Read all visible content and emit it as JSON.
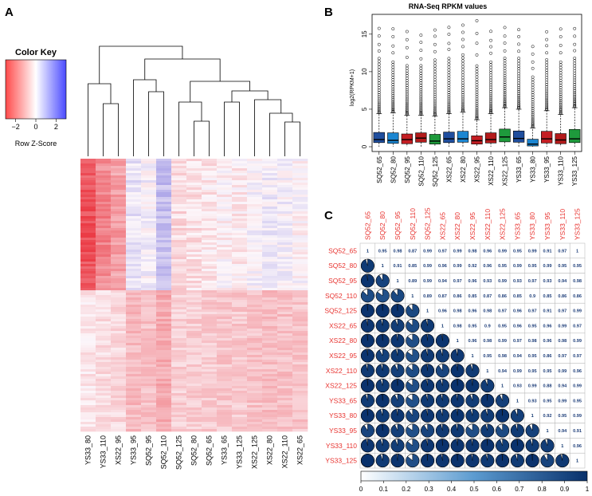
{
  "figure": {
    "panel_labels": [
      "A",
      "B",
      "C"
    ]
  },
  "chart_data": [
    {
      "panel": "A",
      "type": "heatmap",
      "title": "",
      "color_key": {
        "title": "Color Key",
        "xlabel": "Row Z-Score",
        "ticks": [
          "-2",
          "0",
          "2"
        ],
        "range": [
          -3,
          3
        ],
        "colors": [
          "#ff4040",
          "#ffffff",
          "#4040ff"
        ]
      },
      "columns": [
        "YS33_80",
        "YS33_110",
        "XS22_95",
        "YS33_95",
        "SQ52_95",
        "SQ52_110",
        "SQ52_125",
        "SQ52_80",
        "SQ52_65",
        "YS33_65",
        "YS33_125",
        "XS22_125",
        "XS22_80",
        "XS22_110",
        "XS22_65"
      ],
      "column_base_tint": [
        -0.6,
        -0.35,
        -0.25,
        0.45,
        0.3,
        0.85,
        -0.05,
        0.0,
        0.05,
        0.15,
        0.1,
        0.25,
        0.35,
        0.3,
        0.2
      ],
      "row_split_fraction": 0.48,
      "dendrogram": "hierarchical clustering of samples"
    },
    {
      "panel": "B",
      "type": "box",
      "title": "RNA-Seq RPKM values",
      "ylabel": "log2(RPKM+1)",
      "xlabel": "",
      "ylim": [
        0,
        17
      ],
      "yticks": [
        0,
        5,
        10,
        15
      ],
      "categories": [
        "SQ52_65",
        "SQ52_80",
        "SQ52_95",
        "SQ52_110",
        "SQ52_125",
        "XS22_65",
        "XS22_80",
        "XS22_95",
        "XS22_110",
        "XS22_125",
        "YS33_65",
        "YS33_80",
        "YS33_95",
        "YS33_110",
        "YS33_125"
      ],
      "colors": [
        "#1f4e9e",
        "#1c86d1",
        "#c41e23",
        "#b31b1b",
        "#1e9a3c",
        "#1f4e9e",
        "#1c86d1",
        "#c41e23",
        "#b31b1b",
        "#1e9a3c",
        "#1f4e9e",
        "#1c86d1",
        "#c41e23",
        "#b31b1b",
        "#1e9a3c"
      ],
      "q1": [
        0.55,
        0.45,
        0.4,
        0.6,
        0.35,
        0.55,
        0.6,
        0.35,
        0.5,
        0.65,
        0.6,
        0.1,
        0.5,
        0.4,
        0.55
      ],
      "median": [
        0.95,
        0.85,
        0.95,
        1.15,
        0.75,
        1.05,
        1.05,
        0.8,
        0.95,
        1.3,
        1.1,
        0.35,
        1.05,
        0.9,
        1.05
      ],
      "q3": [
        1.9,
        1.85,
        1.7,
        1.85,
        1.65,
        1.95,
        2.05,
        1.45,
        1.85,
        2.35,
        2.1,
        1.0,
        2.05,
        1.75,
        2.3
      ],
      "whisker_high": [
        4.4,
        4.5,
        4.2,
        4.2,
        4.1,
        4.4,
        4.6,
        3.6,
        4.4,
        5.2,
        5.0,
        2.5,
        4.8,
        4.3,
        5.2
      ],
      "outlier_max": [
        15.8,
        15.8,
        15.6,
        15.0,
        15.8,
        16.0,
        16.4,
        16.8,
        15.4,
        16.0,
        15.8,
        13.6,
        15.4,
        15.8,
        15.8
      ],
      "dense_outliers_to": [
        12.0,
        11.5,
        11.0,
        11.0,
        11.8,
        12.0,
        12.5,
        11.0,
        11.5,
        12.0,
        12.0,
        9.5,
        11.8,
        11.5,
        12.0
      ]
    },
    {
      "panel": "C",
      "type": "table",
      "title": "",
      "labels": [
        "SQ52_65",
        "SQ52_80",
        "SQ52_95",
        "SQ52_110",
        "SQ52_125",
        "XS22_65",
        "XS22_80",
        "XS22_95",
        "XS22_110",
        "XS22_125",
        "YS33_65",
        "YS33_80",
        "YS33_95",
        "YS33_110",
        "YS33_125"
      ],
      "matrix": [
        [
          "1",
          "0.95",
          "0.98",
          "0.87",
          "0.99",
          "0.97",
          "0.99",
          "0.98",
          "0.96",
          "0.99",
          "0.95",
          "0.99",
          "0.91",
          "0.97",
          "1"
        ],
        [
          "0.95",
          "1",
          "0.91",
          "0.85",
          "0.99",
          "0.96",
          "0.99",
          "0.92",
          "0.96",
          "0.95",
          "0.99",
          "0.95",
          "0.99",
          "0.95",
          "0.95"
        ],
        [
          "0.98",
          "0.91",
          "1",
          "0.89",
          "0.99",
          "0.94",
          "0.97",
          "0.96",
          "0.93",
          "0.99",
          "0.93",
          "0.97",
          "0.93",
          "0.94",
          "0.98"
        ],
        [
          "0.87",
          "0.85",
          "0.89",
          "1",
          "0.89",
          "0.87",
          "0.86",
          "0.85",
          "0.87",
          "0.86",
          "0.85",
          "0.9",
          "0.85",
          "0.86",
          "0.86"
        ],
        [
          "0.99",
          "0.99",
          "0.99",
          "0.89",
          "1",
          "0.96",
          "0.98",
          "0.96",
          "0.98",
          "0.97",
          "0.96",
          "0.97",
          "0.91",
          "0.97",
          "0.99"
        ],
        [
          "0.97",
          "0.96",
          "0.94",
          "0.87",
          "0.96",
          "1",
          "0.98",
          "0.95",
          "0.9",
          "0.95",
          "0.96",
          "0.95",
          "0.96",
          "0.99",
          "0.97"
        ],
        [
          "0.99",
          "0.99",
          "0.97",
          "0.86",
          "0.98",
          "0.98",
          "1",
          "0.96",
          "0.98",
          "0.99",
          "0.97",
          "0.98",
          "0.96",
          "0.98",
          "0.99"
        ],
        [
          "0.98",
          "0.92",
          "0.96",
          "0.85",
          "0.96",
          "0.95",
          "0.96",
          "1",
          "0.95",
          "0.98",
          "0.94",
          "0.95",
          "0.86",
          "0.97",
          "0.97"
        ],
        [
          "0.96",
          "0.96",
          "0.93",
          "0.87",
          "0.98",
          "0.9",
          "0.98",
          "0.95",
          "1",
          "0.94",
          "0.99",
          "0.95",
          "0.95",
          "0.99",
          "0.96"
        ],
        [
          "0.99",
          "0.95",
          "0.99",
          "0.86",
          "0.97",
          "0.95",
          "0.99",
          "0.98",
          "0.94",
          "1",
          "0.93",
          "0.99",
          "0.88",
          "0.94",
          "0.99"
        ],
        [
          "0.95",
          "0.99",
          "0.93",
          "0.85",
          "0.96",
          "0.96",
          "0.97",
          "0.94",
          "0.99",
          "0.93",
          "1",
          "0.93",
          "0.95",
          "0.99",
          "0.95"
        ],
        [
          "0.99",
          "0.95",
          "0.97",
          "0.9",
          "0.97",
          "0.95",
          "0.98",
          "0.95",
          "0.95",
          "0.99",
          "0.93",
          "1",
          "0.92",
          "0.95",
          "0.99"
        ],
        [
          "0.91",
          "0.99",
          "0.93",
          "0.85",
          "0.91",
          "0.96",
          "0.96",
          "0.86",
          "0.95",
          "0.88",
          "0.95",
          "0.92",
          "1",
          "0.94",
          "0.91"
        ],
        [
          "0.97",
          "0.95",
          "0.94",
          "0.86",
          "0.97",
          "0.99",
          "0.98",
          "0.97",
          "0.99",
          "0.94",
          "0.99",
          "0.95",
          "0.94",
          "1",
          "0.96"
        ],
        [
          "1",
          "0.95",
          "0.98",
          "0.86",
          "0.99",
          "0.97",
          "0.99",
          "0.97",
          "0.96",
          "0.99",
          "0.95",
          "0.99",
          "0.91",
          "0.96",
          "1"
        ]
      ],
      "colorbar": {
        "ticks": [
          "0",
          "0.1",
          "0.2",
          "0.3",
          "0.4",
          "0.5",
          "0.6",
          "0.7",
          "0.8",
          "0.9",
          "1"
        ],
        "range": [
          0,
          1
        ],
        "colors": [
          "#ffffff",
          "#08306b"
        ]
      }
    }
  ]
}
